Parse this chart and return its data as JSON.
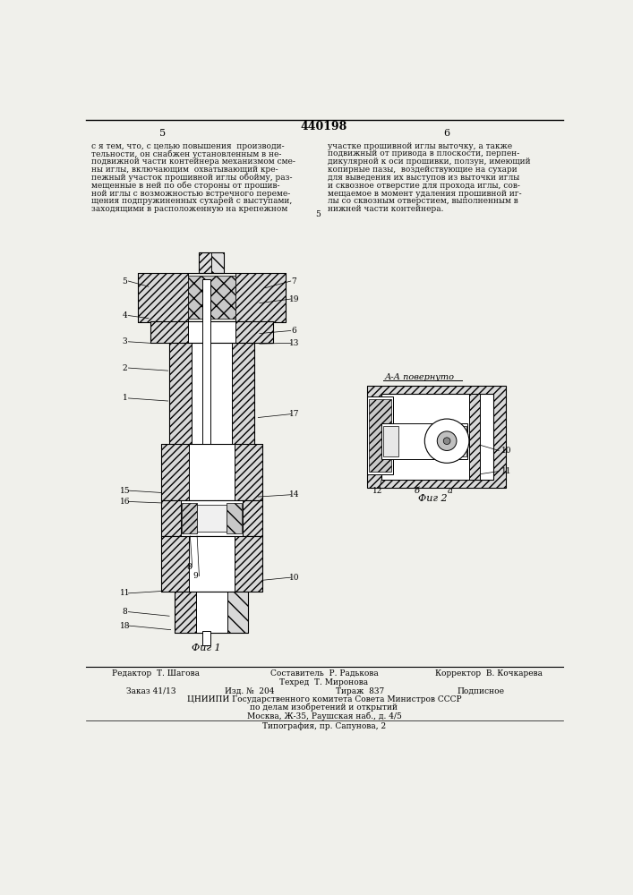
{
  "title": "440198",
  "page_left": "5",
  "page_right": "6",
  "bg_color": "#f0f0eb",
  "text_color": "#111111",
  "text_left_lines": [
    "с я тем, что, с целью повышения  производи-",
    "тельности, он снабжен установленным в не-",
    "подвижной части контейнера механизмом сме-",
    "ны иглы, включающим  охватывающий кре-",
    "пежный участок прошивной иглы обойму, раз-",
    "мещенные в ней по обе стороны от прошив-",
    "ной иглы с возможностью встречного переме-",
    "щения подпружиненных сухарей с выступами,",
    "заходящими в расположенную на крепежном"
  ],
  "text_right_lines": [
    "участке прошивной иглы выточку, а также",
    "подвижный от привода в плоскости, перпен-",
    "дикулярной к оси прошивки, ползун, имеющий",
    "копирные пазы,  воздействующие на сухари",
    "для выведения их выступов из выточки иглы",
    "и сквозное отверстие для прохода иглы, сов-",
    "мещаемое в момент удаления прошивной иг-",
    "лы со сквозным отверстием, выполненным в",
    "нижней части контейнера."
  ],
  "line_number_5": "5",
  "fig1_label": "Фиг 1",
  "fig2_label": "Фиг 2",
  "section_label": "А-А повернуто",
  "footer_editor": "Редактор  Т. Шагова",
  "footer_tech": "Составитель  Р. Радькова",
  "footer_corrector": "Корректор  В. Кочкарева",
  "footer_tech2": "Техред  Т. Миронова",
  "footer_order": "Заказ 41/13",
  "footer_izd": "Изд. №  204",
  "footer_tirazh": "Тираж  837",
  "footer_podpisnoe": "Подписное",
  "footer_org": "ЦНИИПИ Государственного комитета Совета Министров СССР",
  "footer_org2": "по делам изобретений и открытий",
  "footer_addr": "Москва, Ж-35, Раушская наб., д. 4/5",
  "footer_print": "Типография, пр. Сапунова, 2"
}
